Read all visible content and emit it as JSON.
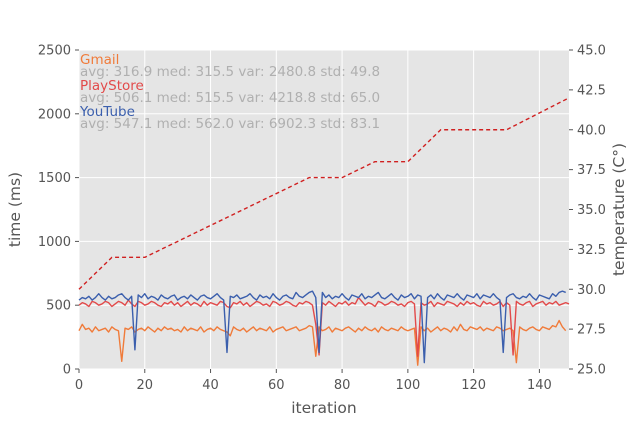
{
  "chart_data": {
    "type": "line",
    "xlabel": "iteration",
    "ylabel": "time (ms)",
    "y2label": "temperature (C°)",
    "xlim": [
      0,
      149
    ],
    "ylim": [
      0,
      2500
    ],
    "y2lim": [
      25.0,
      45.0
    ],
    "grid": true,
    "x_ticks": [
      "0",
      "20",
      "40",
      "60",
      "80",
      "100",
      "120",
      "140"
    ],
    "y_ticks": [
      "0",
      "500",
      "1000",
      "1500",
      "2000",
      "2500"
    ],
    "y2_ticks": [
      "25.0",
      "27.5",
      "30.0",
      "32.5",
      "35.0",
      "37.5",
      "40.0",
      "42.5",
      "45.0"
    ],
    "legend_placement": "top-left",
    "series": [
      {
        "name": "Gmail",
        "axis": "left",
        "color": "#f07b3a",
        "stats": "avg: 316.9 med: 315.5 var: 2480.8 std: 49.8",
        "values": [
          300,
          350,
          310,
          320,
          290,
          330,
          300,
          310,
          320,
          290,
          330,
          310,
          300,
          60,
          320,
          310,
          330,
          290,
          310,
          320,
          300,
          330,
          310,
          290,
          320,
          300,
          330,
          310,
          320,
          300,
          310,
          290,
          330,
          300,
          320,
          310,
          300,
          330,
          290,
          310,
          320,
          300,
          330,
          310,
          300,
          290,
          260,
          330,
          310,
          300,
          320,
          290,
          310,
          330,
          300,
          320,
          310,
          300,
          330,
          290,
          310,
          320,
          330,
          300,
          310,
          320,
          330,
          300,
          310,
          320,
          340,
          330,
          100,
          330,
          300,
          310,
          330,
          290,
          320,
          310,
          300,
          320,
          330,
          310,
          290,
          320,
          300,
          330,
          310,
          300,
          320,
          290,
          330,
          310,
          300,
          320,
          310,
          300,
          330,
          310,
          300,
          310,
          320,
          30,
          330,
          300,
          320,
          290,
          310,
          330,
          300,
          320,
          310,
          290,
          330,
          300,
          350,
          310,
          300,
          330,
          320,
          310,
          330,
          300,
          320,
          310,
          300,
          330,
          320,
          300,
          310,
          320,
          300,
          50,
          330,
          310,
          300,
          320,
          330,
          310,
          300,
          330,
          320,
          310,
          340,
          330,
          380,
          330,
          300
        ]
      },
      {
        "name": "PlayStore",
        "axis": "left",
        "color": "#e24a4a",
        "stats": "avg: 506.1 med: 515.5 var: 4218.8 std: 65.0",
        "values": [
          500,
          520,
          510,
          490,
          530,
          520,
          500,
          510,
          530,
          520,
          490,
          510,
          530,
          520,
          500,
          540,
          510,
          490,
          530,
          520,
          500,
          510,
          530,
          520,
          500,
          490,
          520,
          510,
          530,
          500,
          520,
          490,
          510,
          530,
          500,
          520,
          510,
          490,
          530,
          500,
          520,
          510,
          500,
          530,
          520,
          490,
          480,
          520,
          510,
          530,
          500,
          520,
          490,
          510,
          530,
          520,
          500,
          510,
          490,
          530,
          520,
          500,
          510,
          530,
          520,
          500,
          490,
          520,
          510,
          530,
          520,
          500,
          350,
          110,
          520,
          500,
          530,
          510,
          490,
          520,
          510,
          530,
          500,
          520,
          510,
          560,
          530,
          500,
          520,
          510,
          490,
          530,
          520,
          500,
          510,
          530,
          520,
          500,
          510,
          490,
          520,
          530,
          510,
          100,
          520,
          500,
          510,
          530,
          490,
          520,
          510,
          500,
          530,
          520,
          510,
          490,
          520,
          500,
          530,
          510,
          520,
          500,
          490,
          530,
          510,
          520,
          500,
          510,
          530,
          490,
          520,
          500,
          110,
          530,
          510,
          500,
          520,
          530,
          490,
          510,
          520,
          530,
          500,
          520,
          510,
          530,
          500,
          510,
          520,
          510
        ]
      },
      {
        "name": "YouTube",
        "axis": "left",
        "color": "#3b5fad",
        "stats": "avg: 547.1 med: 562.0 var: 6902.3 std: 83.1",
        "values": [
          540,
          560,
          550,
          570,
          540,
          560,
          590,
          560,
          540,
          570,
          550,
          560,
          580,
          590,
          560,
          540,
          570,
          150,
          580,
          560,
          590,
          550,
          570,
          560,
          540,
          580,
          560,
          550,
          570,
          580,
          540,
          560,
          570,
          550,
          580,
          560,
          540,
          570,
          580,
          560,
          550,
          570,
          590,
          560,
          540,
          130,
          570,
          560,
          580,
          550,
          560,
          570,
          590,
          560,
          540,
          580,
          560,
          570,
          550,
          590,
          560,
          540,
          570,
          580,
          560,
          550,
          600,
          570,
          560,
          580,
          600,
          610,
          560,
          130,
          600,
          560,
          580,
          550,
          570,
          560,
          590,
          560,
          540,
          580,
          570,
          560,
          590,
          550,
          570,
          560,
          580,
          600,
          560,
          550,
          570,
          590,
          560,
          540,
          580,
          560,
          570,
          590,
          550,
          580,
          570,
          50,
          560,
          580,
          550,
          590,
          560,
          540,
          580,
          570,
          560,
          590,
          560,
          540,
          580,
          570,
          560,
          590,
          550,
          580,
          570,
          560,
          590,
          560,
          540,
          130,
          560,
          580,
          590,
          560,
          550,
          570,
          560,
          590,
          560,
          540,
          580,
          570,
          560,
          550,
          590,
          570,
          600,
          610,
          600
        ]
      },
      {
        "name": "",
        "axis": "right",
        "color": "#d02020",
        "dashed": true,
        "x": [
          0,
          5,
          10,
          20,
          70,
          80,
          90,
          100,
          110,
          130,
          149
        ],
        "values": [
          30.0,
          31.0,
          32.0,
          32.0,
          37.0,
          37.0,
          38.0,
          38.0,
          40.0,
          40.0,
          42.0
        ]
      }
    ]
  }
}
